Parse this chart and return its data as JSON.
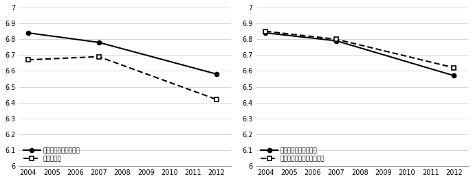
{
  "left": {
    "series1": {
      "label": "熊本市中心市街地域内",
      "x": [
        2004,
        2007,
        2012
      ],
      "y": [
        6.84,
        6.78,
        6.58
      ],
      "linestyle": "solid",
      "marker": "o",
      "color": "#000000"
    },
    "series2": {
      "label": "熊本市域外",
      "x": [
        2004,
        2007,
        2012
      ],
      "y": [
        6.67,
        6.69,
        6.42
      ],
      "linestyle": "dashed",
      "marker": "s",
      "color": "#000000"
    }
  },
  "right": {
    "series1": {
      "label": "熊本市中心市街地域内",
      "x": [
        2004,
        2007,
        2012
      ],
      "y": [
        6.84,
        6.79,
        6.57
      ],
      "linestyle": "solid",
      "marker": "o",
      "color": "#000000"
    },
    "series2": {
      "label": "九州内他市中心市街地域内",
      "x": [
        2004,
        2007,
        2012
      ],
      "y": [
        6.85,
        6.8,
        6.62
      ],
      "linestyle": "dashed",
      "marker": "s",
      "color": "#000000"
    }
  },
  "ylim": [
    6.0,
    7.0
  ],
  "ytick_values": [
    6.0,
    6.1,
    6.2,
    6.3,
    6.4,
    6.5,
    6.6,
    6.7,
    6.8,
    6.9,
    7.0
  ],
  "ytick_labels": [
    "6",
    "6.1",
    "6.2",
    "6.3",
    "6.4",
    "6.5",
    "6.6",
    "6.7",
    "6.8",
    "6.9",
    "7"
  ],
  "xticks": [
    2004,
    2005,
    2006,
    2007,
    2008,
    2009,
    2010,
    2011,
    2012
  ],
  "background_color": "#ffffff",
  "grid_color": "#d0d0d0"
}
